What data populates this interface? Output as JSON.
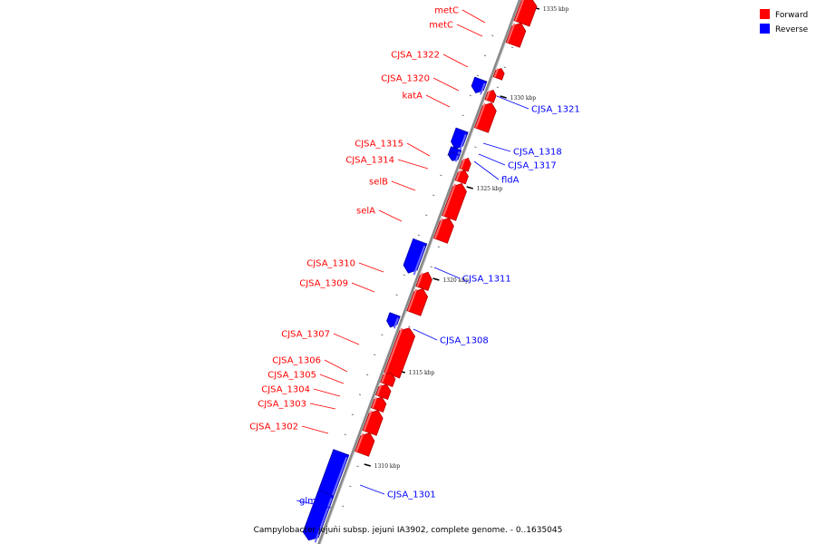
{
  "caption": "Campylobacter jejuni subsp. jejuni IA3902, complete genome. - 0..1635045",
  "colors": {
    "forward": "#ff0000",
    "reverse": "#0000ff",
    "backbone": "#888888"
  },
  "legend": [
    {
      "name": "Forward",
      "color": "#ff0000"
    },
    {
      "name": "Reverse",
      "color": "#0000ff"
    }
  ],
  "tick_labels": [
    "1335 kbp",
    "1330 kbp",
    "1325 kbp",
    "1320 kbp",
    "1315 kbp",
    "1310 kbp"
  ],
  "genes": [
    {
      "name": "metC",
      "strand": "forward"
    },
    {
      "name": "metC",
      "strand": "forward"
    },
    {
      "name": "CJSA_1322",
      "strand": "forward"
    },
    {
      "name": "CJSA_1320",
      "strand": "forward"
    },
    {
      "name": "katA",
      "strand": "forward"
    },
    {
      "name": "CJSA_1321",
      "strand": "reverse"
    },
    {
      "name": "CJSA_1318",
      "strand": "reverse"
    },
    {
      "name": "CJSA_1317",
      "strand": "reverse"
    },
    {
      "name": "fldA",
      "strand": "reverse"
    },
    {
      "name": "CJSA_1315",
      "strand": "forward"
    },
    {
      "name": "CJSA_1314",
      "strand": "forward"
    },
    {
      "name": "selB",
      "strand": "forward"
    },
    {
      "name": "selA",
      "strand": "forward"
    },
    {
      "name": "CJSA_1311",
      "strand": "reverse"
    },
    {
      "name": "CJSA_1310",
      "strand": "forward"
    },
    {
      "name": "CJSA_1309",
      "strand": "forward"
    },
    {
      "name": "CJSA_1308",
      "strand": "reverse"
    },
    {
      "name": "CJSA_1307",
      "strand": "forward"
    },
    {
      "name": "CJSA_1306",
      "strand": "forward"
    },
    {
      "name": "CJSA_1305",
      "strand": "forward"
    },
    {
      "name": "CJSA_1304",
      "strand": "forward"
    },
    {
      "name": "CJSA_1303",
      "strand": "forward"
    },
    {
      "name": "CJSA_1302",
      "strand": "forward"
    },
    {
      "name": "CJSA_1301",
      "strand": "reverse"
    },
    {
      "name": "glmS",
      "strand": "reverse"
    }
  ]
}
